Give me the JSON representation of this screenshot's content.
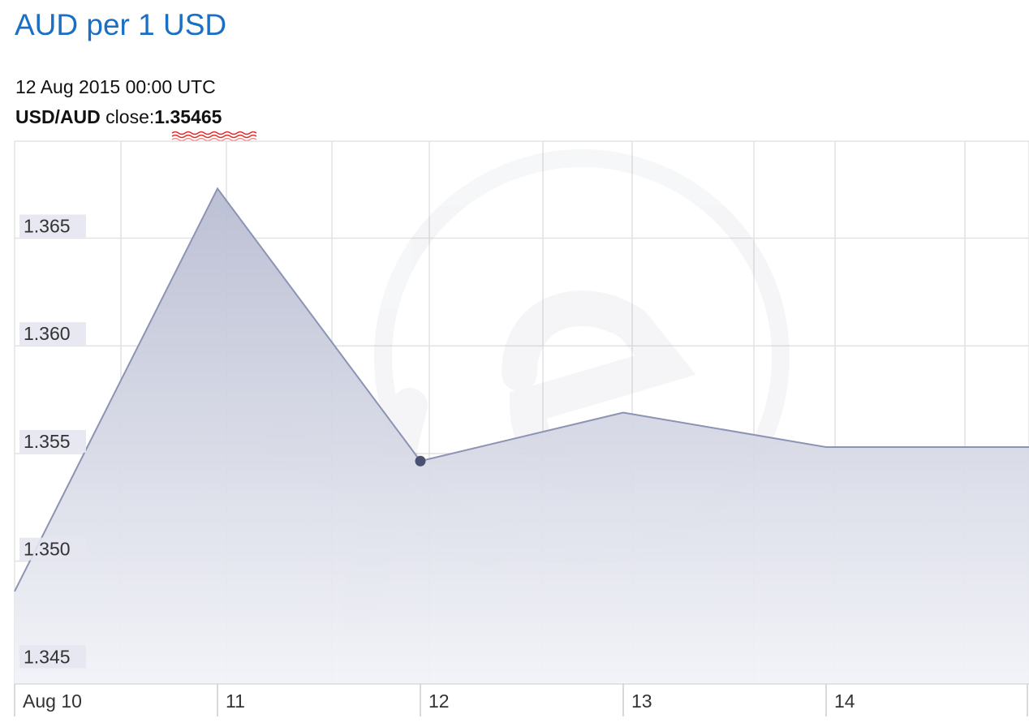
{
  "header": {
    "title": "AUD per 1 USD",
    "tooltip_date": "12 Aug 2015 00:00 UTC",
    "tooltip_pair": "USD/AUD",
    "tooltip_close_label": "close:",
    "tooltip_close_value": "1.35465"
  },
  "colors": {
    "title": "#1a6fc4",
    "line": "#8c93b3",
    "area_top": "#b9bdd2",
    "area_bottom": "#f2f3f8",
    "marker": "#4a5070",
    "grid": "#dddddd",
    "tick_label_bg": "#e4e6f0"
  },
  "chart_data": {
    "type": "area",
    "title": "AUD per 1 USD",
    "xlabel": "",
    "ylabel": "",
    "x_ticks": [
      "Aug 10",
      "11",
      "12",
      "13",
      "14"
    ],
    "y_ticks": [
      "1.365",
      "1.360",
      "1.355",
      "1.350",
      "1.345"
    ],
    "ylim": [
      1.3443,
      1.3695
    ],
    "series": [
      {
        "x": [
          9.95,
          10.95,
          11.95,
          12.95,
          13.95,
          14.95
        ],
        "values": [
          1.3486,
          1.3673,
          1.35465,
          1.3569,
          1.3553,
          1.3553
        ]
      }
    ],
    "highlighted_point": {
      "x": 11.95,
      "value": 1.35465
    },
    "grid": true,
    "watermark_icon": "xe-logo-icon"
  }
}
